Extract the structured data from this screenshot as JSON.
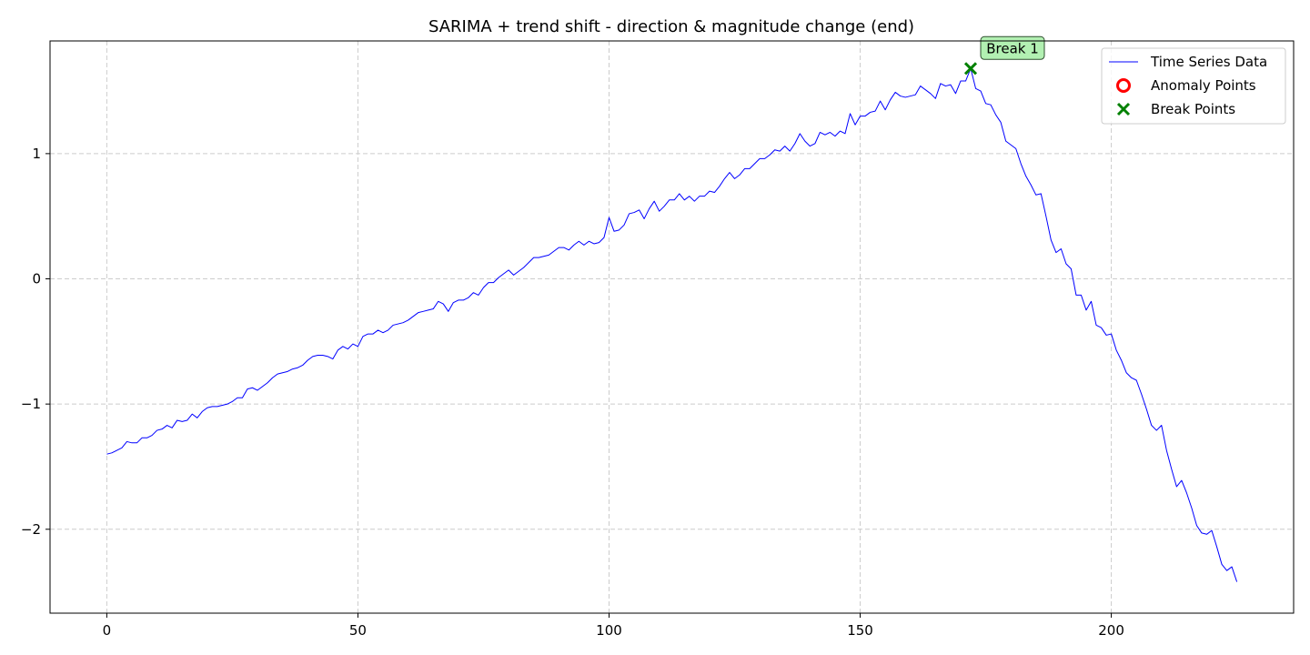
{
  "chart_data": {
    "type": "line",
    "title": "SARIMA + trend shift - direction & magnitude change (end)",
    "xlabel": "",
    "ylabel": "",
    "xlim": [
      -11.3,
      236.3
    ],
    "ylim": [
      -2.67,
      1.9
    ],
    "xticks": [
      0,
      50,
      100,
      150,
      200
    ],
    "yticks": [
      -2,
      -1,
      0,
      1
    ],
    "ytick_labels": [
      "−2",
      "−1",
      "0",
      "1"
    ],
    "grid": true,
    "legend_position": "top-right",
    "series": [
      {
        "name": "Time Series Data",
        "color": "#0000ff",
        "x_start": 0,
        "x_step": 1,
        "values": [
          -1.4,
          -1.39,
          -1.37,
          -1.35,
          -1.3,
          -1.31,
          -1.31,
          -1.27,
          -1.27,
          -1.25,
          -1.21,
          -1.2,
          -1.17,
          -1.19,
          -1.13,
          -1.14,
          -1.13,
          -1.08,
          -1.11,
          -1.06,
          -1.03,
          -1.02,
          -1.02,
          -1.01,
          -1.0,
          -0.98,
          -0.95,
          -0.95,
          -0.88,
          -0.87,
          -0.89,
          -0.86,
          -0.83,
          -0.79,
          -0.76,
          -0.75,
          -0.74,
          -0.72,
          -0.71,
          -0.69,
          -0.65,
          -0.62,
          -0.61,
          -0.61,
          -0.62,
          -0.64,
          -0.57,
          -0.54,
          -0.56,
          -0.52,
          -0.54,
          -0.46,
          -0.44,
          -0.44,
          -0.41,
          -0.43,
          -0.41,
          -0.37,
          -0.36,
          -0.35,
          -0.33,
          -0.3,
          -0.27,
          -0.26,
          -0.25,
          -0.24,
          -0.18,
          -0.2,
          -0.26,
          -0.19,
          -0.17,
          -0.17,
          -0.15,
          -0.11,
          -0.13,
          -0.07,
          -0.03,
          -0.03,
          0.01,
          0.04,
          0.07,
          0.03,
          0.06,
          0.09,
          0.13,
          0.17,
          0.17,
          0.18,
          0.19,
          0.22,
          0.25,
          0.25,
          0.23,
          0.27,
          0.3,
          0.27,
          0.3,
          0.28,
          0.29,
          0.33,
          0.49,
          0.38,
          0.39,
          0.43,
          0.52,
          0.53,
          0.55,
          0.48,
          0.56,
          0.62,
          0.54,
          0.58,
          0.63,
          0.63,
          0.68,
          0.63,
          0.66,
          0.62,
          0.66,
          0.66,
          0.7,
          0.69,
          0.74,
          0.8,
          0.85,
          0.8,
          0.83,
          0.88,
          0.88,
          0.92,
          0.96,
          0.96,
          0.99,
          1.03,
          1.02,
          1.06,
          1.02,
          1.08,
          1.16,
          1.1,
          1.06,
          1.08,
          1.17,
          1.15,
          1.17,
          1.14,
          1.18,
          1.16,
          1.32,
          1.23,
          1.3,
          1.3,
          1.33,
          1.34,
          1.42,
          1.35,
          1.43,
          1.49,
          1.46,
          1.45,
          1.46,
          1.47,
          1.54,
          1.51,
          1.48,
          1.44,
          1.56,
          1.54,
          1.55,
          1.48,
          1.58,
          1.58,
          1.68,
          1.52,
          1.5,
          1.4,
          1.39,
          1.31,
          1.25,
          1.1,
          1.07,
          1.04,
          0.92,
          0.82,
          0.75,
          0.67,
          0.68,
          0.5,
          0.31,
          0.21,
          0.24,
          0.12,
          0.08,
          -0.13,
          -0.13,
          -0.25,
          -0.18,
          -0.37,
          -0.39,
          -0.45,
          -0.44,
          -0.57,
          -0.65,
          -0.75,
          -0.79,
          -0.81,
          -0.92,
          -1.04,
          -1.17,
          -1.21,
          -1.17,
          -1.37,
          -1.52,
          -1.66,
          -1.61,
          -1.71,
          -1.83,
          -1.97,
          -2.03,
          -2.04,
          -2.01,
          -2.14,
          -2.28,
          -2.33,
          -2.3,
          -2.42
        ]
      }
    ],
    "anomaly_points": [],
    "break_points": [
      {
        "x": 172,
        "y": 1.68,
        "label": "Break 1"
      }
    ],
    "legend": {
      "entries": [
        {
          "label": "Time Series Data",
          "marker": "line",
          "color": "#0000ff"
        },
        {
          "label": "Anomaly Points",
          "marker": "circle",
          "color": "#ff0000"
        },
        {
          "label": "Break Points",
          "marker": "x",
          "color": "#008000"
        }
      ]
    },
    "annotation_style": {
      "face_color": "#b2f0b2",
      "edge_color": "#2f4f2f"
    }
  }
}
